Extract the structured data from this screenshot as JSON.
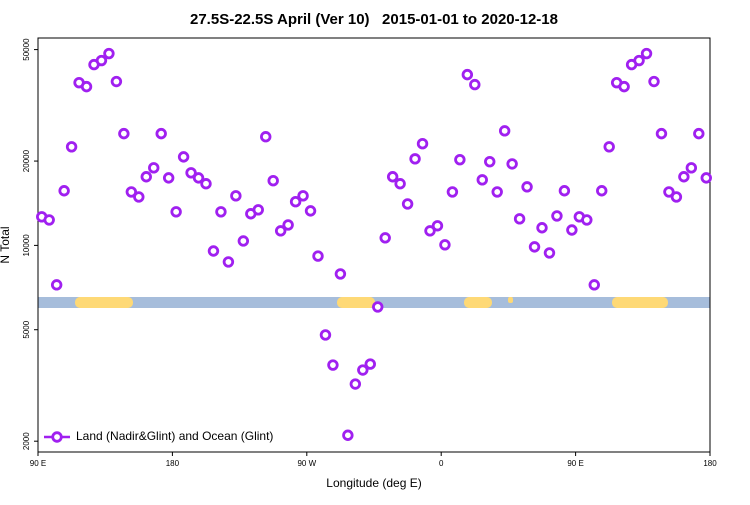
{
  "chart_data": {
    "type": "scatter",
    "title": "27.5S-22.5S April (Ver 10)   2015-01-01 to 2020-12-18",
    "xlabel": "Longitude (deg E)",
    "ylabel": "N Total",
    "xlim": [
      90,
      540
    ],
    "ylim": [
      1830,
      55000
    ],
    "yscale": "log",
    "xticks": [
      {
        "value": 90,
        "label": "90 E"
      },
      180,
      {
        "value": 270,
        "label": "90 W"
      },
      {
        "value": 360,
        "label": "0"
      },
      {
        "value": 450,
        "label": "90 E"
      },
      {
        "value": 540,
        "label": "180"
      }
    ],
    "yticks": [
      2000,
      5000,
      10000,
      20000,
      50000
    ],
    "legend_position": "bottom-left",
    "series": [
      {
        "name": "Land (Nadir&Glint) and Ocean (Glint)",
        "color": "#a020f0",
        "x": [
          92.5,
          97.5,
          102.5,
          107.5,
          112.5,
          117.5,
          122.5,
          127.5,
          132.5,
          137.5,
          142.5,
          147.5,
          152.5,
          157.5,
          162.5,
          167.5,
          172.5,
          177.5,
          182.5,
          187.5,
          192.5,
          197.5,
          202.5,
          207.5,
          212.5,
          217.5,
          222.5,
          227.5,
          232.5,
          237.5,
          242.5,
          247.5,
          252.5,
          257.5,
          262.5,
          267.5,
          272.5,
          277.5,
          282.5,
          287.5,
          292.5,
          297.5,
          302.5,
          307.5,
          312.5,
          317.5,
          322.5,
          327.5,
          332.5,
          337.5,
          342.5,
          347.5,
          352.5,
          357.5,
          362.5,
          367.5,
          372.5,
          377.5,
          382.5,
          387.5,
          392.5,
          397.5,
          402.5,
          407.5,
          412.5,
          417.5,
          422.5,
          427.5,
          432.5,
          437.5,
          442.5,
          447.5,
          452.5,
          457.5,
          462.5,
          467.5,
          472.5,
          477.5,
          482.5,
          487.5,
          492.5,
          497.5,
          502.5,
          507.5,
          512.5,
          517.5,
          522.5,
          527.5,
          532.5,
          537.5
        ],
        "values": [
          12650,
          12330,
          7230,
          15670,
          22490,
          38100,
          36880,
          44200,
          45700,
          48400,
          38460,
          25060,
          15520,
          14890,
          17580,
          18920,
          25060,
          17420,
          13180,
          20700,
          18160,
          17420,
          16600,
          9550,
          13180,
          8730,
          15030,
          10370,
          12970,
          13400,
          24430,
          17020,
          11270,
          11830,
          14320,
          15030,
          13280,
          9160,
          4790,
          3740,
          7910,
          2100,
          3200,
          3590,
          3770,
          6030,
          10640,
          17580,
          16600,
          14060,
          20370,
          23070,
          11270,
          11750,
          10050,
          15520,
          20230,
          40700,
          37500,
          17140,
          19900,
          15520,
          25640,
          19540,
          12440,
          16180,
          9880,
          11560,
          9400,
          12740,
          15670,
          11350,
          12650,
          12330,
          7230,
          15670,
          22490,
          38100,
          36880,
          44200,
          45700,
          48400,
          38460,
          25060,
          15520,
          14890,
          17580,
          18920,
          25060,
          17420
        ]
      }
    ]
  }
}
